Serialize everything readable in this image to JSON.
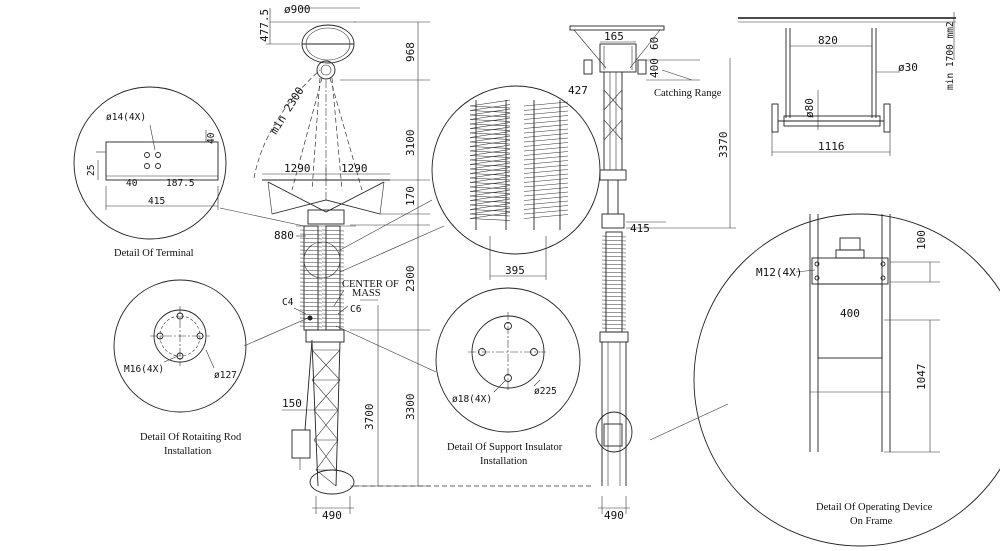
{
  "dimensions": {
    "top_diameter": "ø900",
    "top_height": "477.5",
    "height_968": "968",
    "min_2300": "min 2300",
    "height_3100": "3100",
    "span_left": "1290",
    "span_right": "1290",
    "height_170": "170",
    "width_880": "880",
    "height_2300": "2300",
    "height_3700": "3700",
    "height_3300": "3300",
    "width_150": "150",
    "base_left": "490",
    "insulator_width": "395",
    "clamp_width": "165",
    "clamp_height": "60",
    "catch_height": "400",
    "clamp_offset": "427",
    "height_3370": "3370",
    "width_415_side": "415",
    "base_right": "490",
    "frame_width": "820",
    "rod_diameter": "ø30",
    "wheel_diameter": "ø80",
    "wheel_span": "1116",
    "conductor_size": "min 1700 mm2",
    "op_bolt": "M12(4X)",
    "op_height_100": "100",
    "op_width_400": "400",
    "op_height_1047": "1047"
  },
  "labels": {
    "catching_range": "Catching Range",
    "center_of_mass": "CENTER OF MASS",
    "c4": "C4",
    "c6": "C6"
  },
  "details": {
    "terminal": {
      "caption": "Detail Of Terminal",
      "hole": "ø14(4X)",
      "d40_top": "40",
      "d25": "25",
      "d40": "40",
      "d187_5": "187.5",
      "d415": "415"
    },
    "rod": {
      "caption_line1": "Detail Of Rotaiting Rod",
      "caption_line2": "Installation",
      "bolt": "M16(4X)",
      "diameter": "ø127"
    },
    "support": {
      "caption_line1": "Detail Of Support Insulator",
      "caption_line2": "Installation",
      "hole": "ø18(4X)",
      "diameter": "ø225"
    },
    "operating": {
      "caption_line1": "Detail Of Operating Device",
      "caption_line2": "On Frame"
    }
  }
}
